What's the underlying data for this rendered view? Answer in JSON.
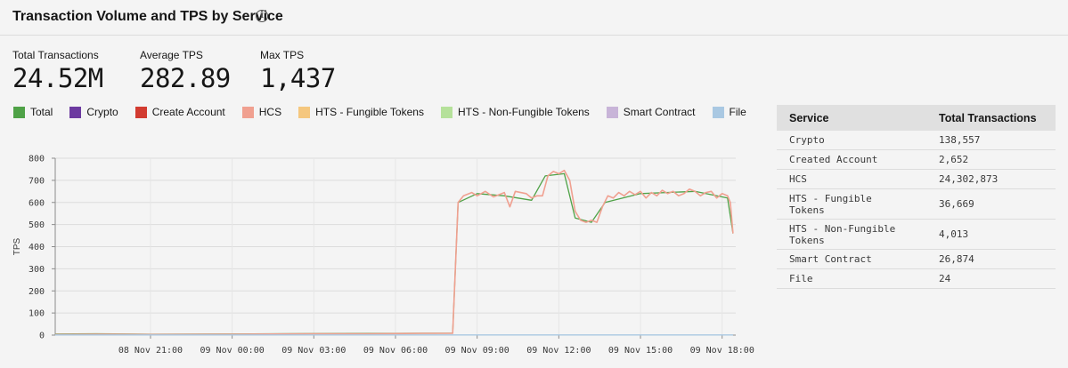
{
  "header": {
    "title": "Transaction Volume and TPS by Service",
    "info_icon": "info-icon"
  },
  "kpis": [
    {
      "label": "Total Transactions",
      "value": "24.52M"
    },
    {
      "label": "Average TPS",
      "value": "282.89"
    },
    {
      "label": "Max TPS",
      "value": "1,437"
    }
  ],
  "legend": [
    {
      "name": "Total",
      "color": "#4fa247"
    },
    {
      "name": "Crypto",
      "color": "#6c3aa0"
    },
    {
      "name": "Create Account",
      "color": "#d23b30"
    },
    {
      "name": "HCS",
      "color": "#f0a090"
    },
    {
      "name": "HTS - Fungible Tokens",
      "color": "#f5c77e"
    },
    {
      "name": "HTS - Non-Fungible Tokens",
      "color": "#b5e19a"
    },
    {
      "name": "Smart Contract",
      "color": "#c8b4d8"
    },
    {
      "name": "File",
      "color": "#a9c8e2"
    }
  ],
  "table": {
    "headers": [
      "Service",
      "Total Transactions"
    ],
    "rows": [
      {
        "service": "Crypto",
        "total": "138,557"
      },
      {
        "service": "Created Account",
        "total": "2,652"
      },
      {
        "service": "HCS",
        "total": "24,302,873"
      },
      {
        "service": "HTS - Fungible Tokens",
        "total": "36,669"
      },
      {
        "service": "HTS - Non-Fungible Tokens",
        "total": "4,013"
      },
      {
        "service": "Smart Contract",
        "total": "26,874"
      },
      {
        "service": "File",
        "total": "24"
      }
    ]
  },
  "chart_data": {
    "type": "line",
    "ylabel": "TPS",
    "ylim": [
      0,
      800
    ],
    "yticks": [
      0,
      100,
      200,
      300,
      400,
      500,
      600,
      700,
      800
    ],
    "x_start_hour": 17.5,
    "x_end_hour": 42.5,
    "xticks": [
      {
        "hour": 21,
        "label": "08 Nov 21:00"
      },
      {
        "hour": 24,
        "label": "09 Nov 00:00"
      },
      {
        "hour": 27,
        "label": "09 Nov 03:00"
      },
      {
        "hour": 30,
        "label": "09 Nov 06:00"
      },
      {
        "hour": 33,
        "label": "09 Nov 09:00"
      },
      {
        "hour": 36,
        "label": "09 Nov 12:00"
      },
      {
        "hour": 39,
        "label": "09 Nov 15:00"
      },
      {
        "hour": 42,
        "label": "09 Nov 18:00"
      }
    ],
    "grid": true,
    "series": [
      {
        "name": "Total",
        "color": "#4fa247",
        "points": [
          [
            17.5,
            5
          ],
          [
            19,
            6
          ],
          [
            21,
            4
          ],
          [
            24,
            5
          ],
          [
            27,
            7
          ],
          [
            30,
            8
          ],
          [
            32.1,
            9
          ],
          [
            32.3,
            600
          ],
          [
            33,
            640
          ],
          [
            34,
            630
          ],
          [
            35,
            610
          ],
          [
            35.5,
            720
          ],
          [
            36.2,
            730
          ],
          [
            36.6,
            530
          ],
          [
            37.2,
            510
          ],
          [
            37.7,
            600
          ],
          [
            39,
            640
          ],
          [
            41,
            650
          ],
          [
            42.2,
            620
          ],
          [
            42.4,
            460
          ]
        ]
      },
      {
        "name": "HCS",
        "color": "#f0a090",
        "points": [
          [
            17.5,
            3
          ],
          [
            19,
            4
          ],
          [
            21,
            3
          ],
          [
            24,
            4
          ],
          [
            27,
            6
          ],
          [
            29,
            6
          ],
          [
            30,
            7
          ],
          [
            31,
            8
          ],
          [
            32.1,
            8
          ],
          [
            32.3,
            600
          ],
          [
            32.5,
            630
          ],
          [
            32.8,
            645
          ],
          [
            33,
            630
          ],
          [
            33.3,
            650
          ],
          [
            33.6,
            625
          ],
          [
            34,
            645
          ],
          [
            34.2,
            580
          ],
          [
            34.4,
            650
          ],
          [
            34.8,
            640
          ],
          [
            35.0,
            620
          ],
          [
            35.2,
            630
          ],
          [
            35.4,
            630
          ],
          [
            35.6,
            720
          ],
          [
            35.8,
            740
          ],
          [
            36.0,
            730
          ],
          [
            36.2,
            745
          ],
          [
            36.4,
            700
          ],
          [
            36.6,
            560
          ],
          [
            36.8,
            520
          ],
          [
            37.0,
            510
          ],
          [
            37.2,
            520
          ],
          [
            37.4,
            510
          ],
          [
            37.6,
            580
          ],
          [
            37.8,
            630
          ],
          [
            38.0,
            620
          ],
          [
            38.2,
            645
          ],
          [
            38.4,
            630
          ],
          [
            38.6,
            650
          ],
          [
            38.8,
            635
          ],
          [
            39,
            650
          ],
          [
            39.2,
            620
          ],
          [
            39.4,
            645
          ],
          [
            39.6,
            630
          ],
          [
            39.8,
            655
          ],
          [
            40,
            640
          ],
          [
            40.2,
            650
          ],
          [
            40.4,
            630
          ],
          [
            40.6,
            640
          ],
          [
            40.8,
            660
          ],
          [
            41,
            650
          ],
          [
            41.2,
            630
          ],
          [
            41.4,
            645
          ],
          [
            41.6,
            650
          ],
          [
            41.8,
            620
          ],
          [
            42,
            640
          ],
          [
            42.2,
            630
          ],
          [
            42.3,
            600
          ],
          [
            42.4,
            460
          ]
        ]
      },
      {
        "name": "File",
        "color": "#a9c8e2",
        "points": [
          [
            17.5,
            1
          ],
          [
            42.4,
            1
          ]
        ]
      }
    ]
  }
}
